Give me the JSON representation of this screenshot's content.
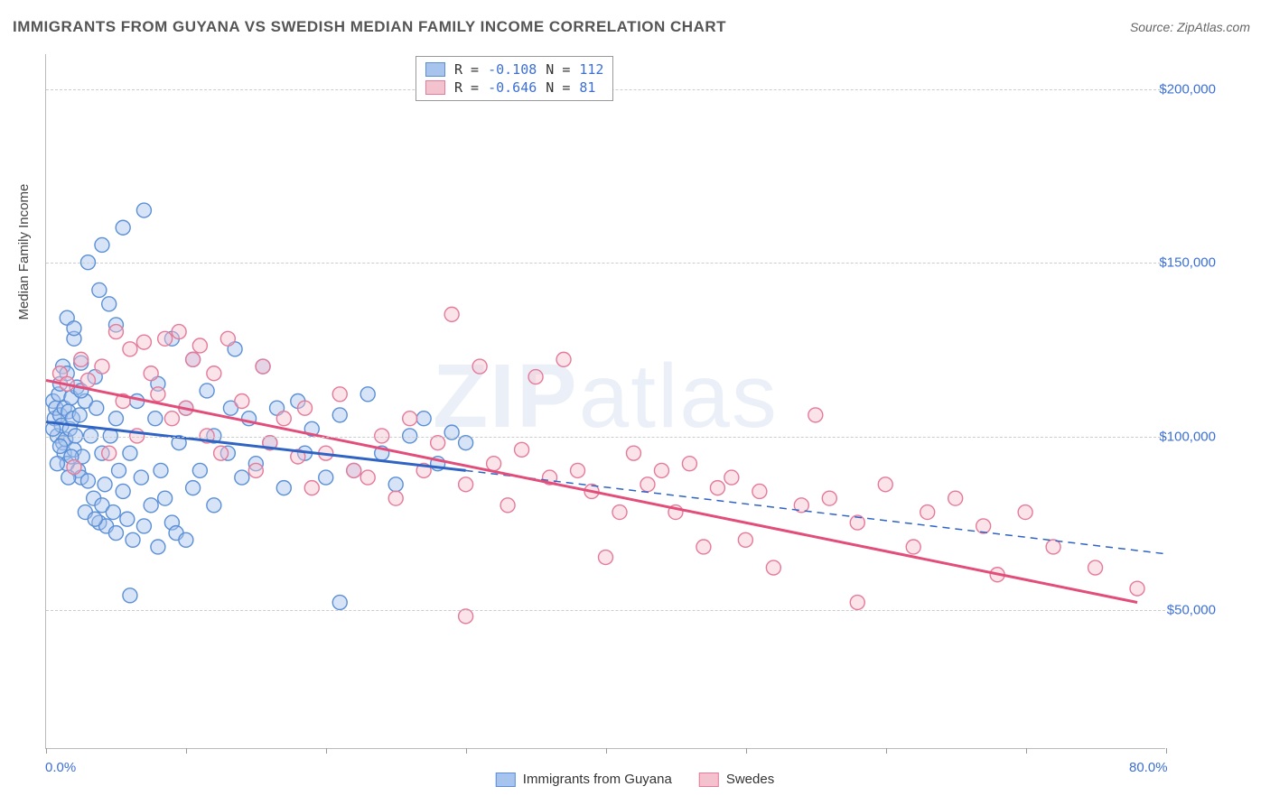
{
  "title": "IMMIGRANTS FROM GUYANA VS SWEDISH MEDIAN FAMILY INCOME CORRELATION CHART",
  "source_label": "Source: ZipAtlas.com",
  "y_axis_label": "Median Family Income",
  "watermark": "ZIPatlas",
  "chart": {
    "type": "scatter",
    "xlim": [
      0,
      80
    ],
    "ylim": [
      10000,
      210000
    ],
    "y_ticks": [
      50000,
      100000,
      150000,
      200000
    ],
    "y_tick_labels": [
      "$50,000",
      "$100,000",
      "$150,000",
      "$200,000"
    ],
    "x_ticks": [
      0,
      10,
      20,
      30,
      40,
      50,
      60,
      70,
      80
    ],
    "x_tick_labels": {
      "0": "0.0%",
      "80": "80.0%"
    },
    "gridline_color": "#cccccc",
    "background_color": "#ffffff",
    "marker_radius": 8,
    "marker_opacity": 0.45,
    "marker_stroke_width": 1.4,
    "series": [
      {
        "name": "Immigrants from Guyana",
        "fill_color": "#a6c4ee",
        "stroke_color": "#5b8fd6",
        "line_color": "#2f63c4",
        "R": "-0.108",
        "N": "112",
        "regression": {
          "x1": 0,
          "y1": 104000,
          "x2": 30,
          "y2": 90000,
          "extend_x2": 80,
          "extend_y2": 66000
        },
        "points": [
          [
            0.5,
            110000
          ],
          [
            0.6,
            105000
          ],
          [
            0.7,
            108000
          ],
          [
            0.8,
            100000
          ],
          [
            0.9,
            112000
          ],
          [
            1.0,
            106000
          ],
          [
            1.0,
            115000
          ],
          [
            1.1,
            103000
          ],
          [
            1.2,
            98000
          ],
          [
            1.2,
            120000
          ],
          [
            1.3,
            108000
          ],
          [
            1.3,
            95000
          ],
          [
            1.4,
            99000
          ],
          [
            1.5,
            118000
          ],
          [
            1.5,
            92000
          ],
          [
            1.6,
            107000
          ],
          [
            1.7,
            102000
          ],
          [
            1.8,
            111000
          ],
          [
            1.9,
            105000
          ],
          [
            2.0,
            96000
          ],
          [
            2.0,
            128000
          ],
          [
            2.1,
            100000
          ],
          [
            2.2,
            114000
          ],
          [
            2.3,
            90000
          ],
          [
            2.4,
            106000
          ],
          [
            2.5,
            88000
          ],
          [
            2.5,
            121000
          ],
          [
            2.6,
            94000
          ],
          [
            2.8,
            110000
          ],
          [
            3.0,
            87000
          ],
          [
            3.0,
            150000
          ],
          [
            3.2,
            100000
          ],
          [
            3.4,
            82000
          ],
          [
            3.5,
            117000
          ],
          [
            3.6,
            108000
          ],
          [
            3.8,
            75000
          ],
          [
            3.8,
            142000
          ],
          [
            4.0,
            95000
          ],
          [
            4.0,
            80000
          ],
          [
            4.2,
            86000
          ],
          [
            4.3,
            74000
          ],
          [
            4.5,
            138000
          ],
          [
            4.6,
            100000
          ],
          [
            4.8,
            78000
          ],
          [
            5.0,
            105000
          ],
          [
            5.0,
            72000
          ],
          [
            5.2,
            90000
          ],
          [
            5.5,
            160000
          ],
          [
            5.5,
            84000
          ],
          [
            5.8,
            76000
          ],
          [
            6.0,
            95000
          ],
          [
            6.0,
            54000
          ],
          [
            6.2,
            70000
          ],
          [
            6.5,
            110000
          ],
          [
            6.8,
            88000
          ],
          [
            7.0,
            74000
          ],
          [
            7.0,
            165000
          ],
          [
            7.5,
            80000
          ],
          [
            7.8,
            105000
          ],
          [
            8.0,
            68000
          ],
          [
            8.0,
            115000
          ],
          [
            8.2,
            90000
          ],
          [
            8.5,
            82000
          ],
          [
            9.0,
            128000
          ],
          [
            9.0,
            75000
          ],
          [
            9.3,
            72000
          ],
          [
            9.5,
            98000
          ],
          [
            10.0,
            108000
          ],
          [
            10.0,
            70000
          ],
          [
            10.5,
            122000
          ],
          [
            10.5,
            85000
          ],
          [
            11.0,
            90000
          ],
          [
            11.5,
            113000
          ],
          [
            12.0,
            80000
          ],
          [
            12.0,
            100000
          ],
          [
            13.0,
            95000
          ],
          [
            13.2,
            108000
          ],
          [
            13.5,
            125000
          ],
          [
            14.0,
            88000
          ],
          [
            14.5,
            105000
          ],
          [
            15.0,
            92000
          ],
          [
            15.5,
            120000
          ],
          [
            16.0,
            98000
          ],
          [
            16.5,
            108000
          ],
          [
            17.0,
            85000
          ],
          [
            18.0,
            110000
          ],
          [
            18.5,
            95000
          ],
          [
            19.0,
            102000
          ],
          [
            20.0,
            88000
          ],
          [
            21.0,
            52000
          ],
          [
            21.0,
            106000
          ],
          [
            22.0,
            90000
          ],
          [
            23.0,
            112000
          ],
          [
            24.0,
            95000
          ],
          [
            25.0,
            86000
          ],
          [
            26.0,
            100000
          ],
          [
            27.0,
            105000
          ],
          [
            28.0,
            92000
          ],
          [
            29.0,
            101000
          ],
          [
            30.0,
            98000
          ],
          [
            4.0,
            155000
          ],
          [
            1.5,
            134000
          ],
          [
            2.0,
            131000
          ],
          [
            0.8,
            92000
          ],
          [
            1.6,
            88000
          ],
          [
            2.8,
            78000
          ],
          [
            3.5,
            76000
          ],
          [
            5.0,
            132000
          ],
          [
            1.0,
            97000
          ],
          [
            0.5,
            102000
          ],
          [
            1.8,
            94000
          ],
          [
            2.5,
            113000
          ]
        ]
      },
      {
        "name": "Swedes",
        "fill_color": "#f4c2cf",
        "stroke_color": "#e57a9a",
        "line_color": "#e24d7a",
        "R": "-0.646",
        "N": "81",
        "regression": {
          "x1": 0,
          "y1": 116000,
          "x2": 78,
          "y2": 52000
        },
        "points": [
          [
            1.0,
            118000
          ],
          [
            1.5,
            115000
          ],
          [
            2.0,
            91000
          ],
          [
            2.5,
            122000
          ],
          [
            3.0,
            116000
          ],
          [
            4.0,
            120000
          ],
          [
            4.5,
            95000
          ],
          [
            5.0,
            130000
          ],
          [
            5.5,
            110000
          ],
          [
            6.0,
            125000
          ],
          [
            6.5,
            100000
          ],
          [
            7.0,
            127000
          ],
          [
            7.5,
            118000
          ],
          [
            8.0,
            112000
          ],
          [
            8.5,
            128000
          ],
          [
            9.0,
            105000
          ],
          [
            9.5,
            130000
          ],
          [
            10.0,
            108000
          ],
          [
            10.5,
            122000
          ],
          [
            11.0,
            126000
          ],
          [
            11.5,
            100000
          ],
          [
            12.0,
            118000
          ],
          [
            12.5,
            95000
          ],
          [
            13.0,
            128000
          ],
          [
            14.0,
            110000
          ],
          [
            15.0,
            90000
          ],
          [
            15.5,
            120000
          ],
          [
            16.0,
            98000
          ],
          [
            17.0,
            105000
          ],
          [
            18.0,
            94000
          ],
          [
            18.5,
            108000
          ],
          [
            19.0,
            85000
          ],
          [
            20.0,
            95000
          ],
          [
            21.0,
            112000
          ],
          [
            22.0,
            90000
          ],
          [
            23.0,
            88000
          ],
          [
            24.0,
            100000
          ],
          [
            25.0,
            82000
          ],
          [
            26.0,
            105000
          ],
          [
            27.0,
            90000
          ],
          [
            28.0,
            98000
          ],
          [
            29.0,
            135000
          ],
          [
            30.0,
            48000
          ],
          [
            30.0,
            86000
          ],
          [
            31.0,
            120000
          ],
          [
            32.0,
            92000
          ],
          [
            33.0,
            80000
          ],
          [
            34.0,
            96000
          ],
          [
            35.0,
            117000
          ],
          [
            36.0,
            88000
          ],
          [
            37.0,
            122000
          ],
          [
            38.0,
            90000
          ],
          [
            39.0,
            84000
          ],
          [
            40.0,
            65000
          ],
          [
            41.0,
            78000
          ],
          [
            42.0,
            95000
          ],
          [
            43.0,
            86000
          ],
          [
            44.0,
            90000
          ],
          [
            45.0,
            78000
          ],
          [
            46.0,
            92000
          ],
          [
            47.0,
            68000
          ],
          [
            48.0,
            85000
          ],
          [
            49.0,
            88000
          ],
          [
            50.0,
            70000
          ],
          [
            51.0,
            84000
          ],
          [
            52.0,
            62000
          ],
          [
            54.0,
            80000
          ],
          [
            55.0,
            106000
          ],
          [
            56.0,
            82000
          ],
          [
            58.0,
            52000
          ],
          [
            58.0,
            75000
          ],
          [
            60.0,
            86000
          ],
          [
            62.0,
            68000
          ],
          [
            63.0,
            78000
          ],
          [
            65.0,
            82000
          ],
          [
            67.0,
            74000
          ],
          [
            68.0,
            60000
          ],
          [
            70.0,
            78000
          ],
          [
            72.0,
            68000
          ],
          [
            75.0,
            62000
          ],
          [
            78.0,
            56000
          ]
        ]
      }
    ]
  }
}
